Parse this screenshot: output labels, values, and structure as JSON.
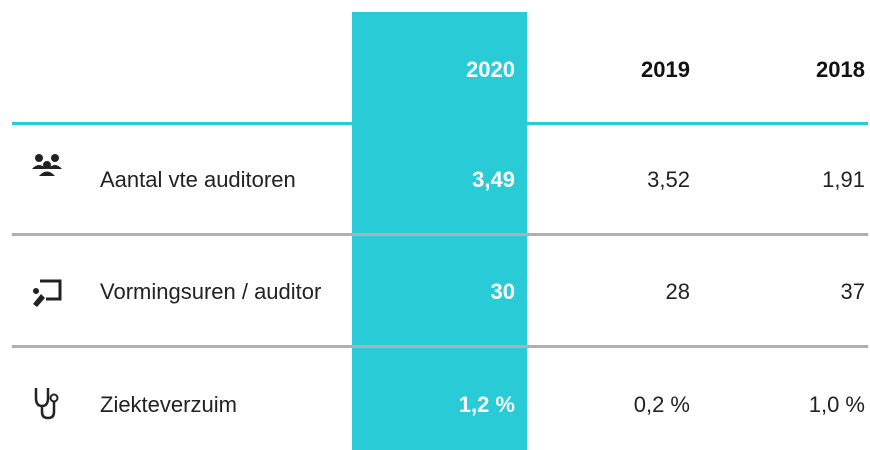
{
  "table": {
    "columns": [
      "2020",
      "2019",
      "2018"
    ],
    "rows": [
      {
        "label": "Aantal vte auditoren",
        "values": [
          "3,49",
          "3,52",
          "1,91"
        ]
      },
      {
        "label": "Vormingsuren / auditor",
        "values": [
          "30",
          "28",
          "37"
        ]
      },
      {
        "label": "Ziekteverzuim",
        "values": [
          "1,2 %",
          "0,2 %",
          "1,0 %"
        ]
      }
    ]
  }
}
